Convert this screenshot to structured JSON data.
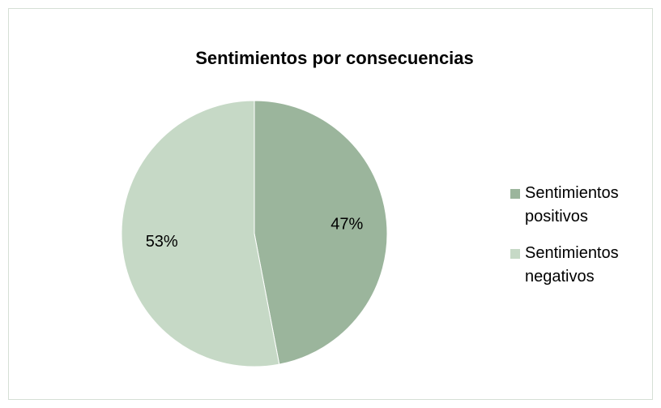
{
  "chart_data": {
    "type": "pie",
    "title": "Sentimientos por consecuencias",
    "categories": [
      "Sentimientos positivos",
      "Sentimientos negativos"
    ],
    "values": [
      47,
      53
    ],
    "value_labels": [
      "47%",
      "53%"
    ],
    "colors": [
      "#9bb59c",
      "#c6d9c6"
    ],
    "legend": "right"
  }
}
